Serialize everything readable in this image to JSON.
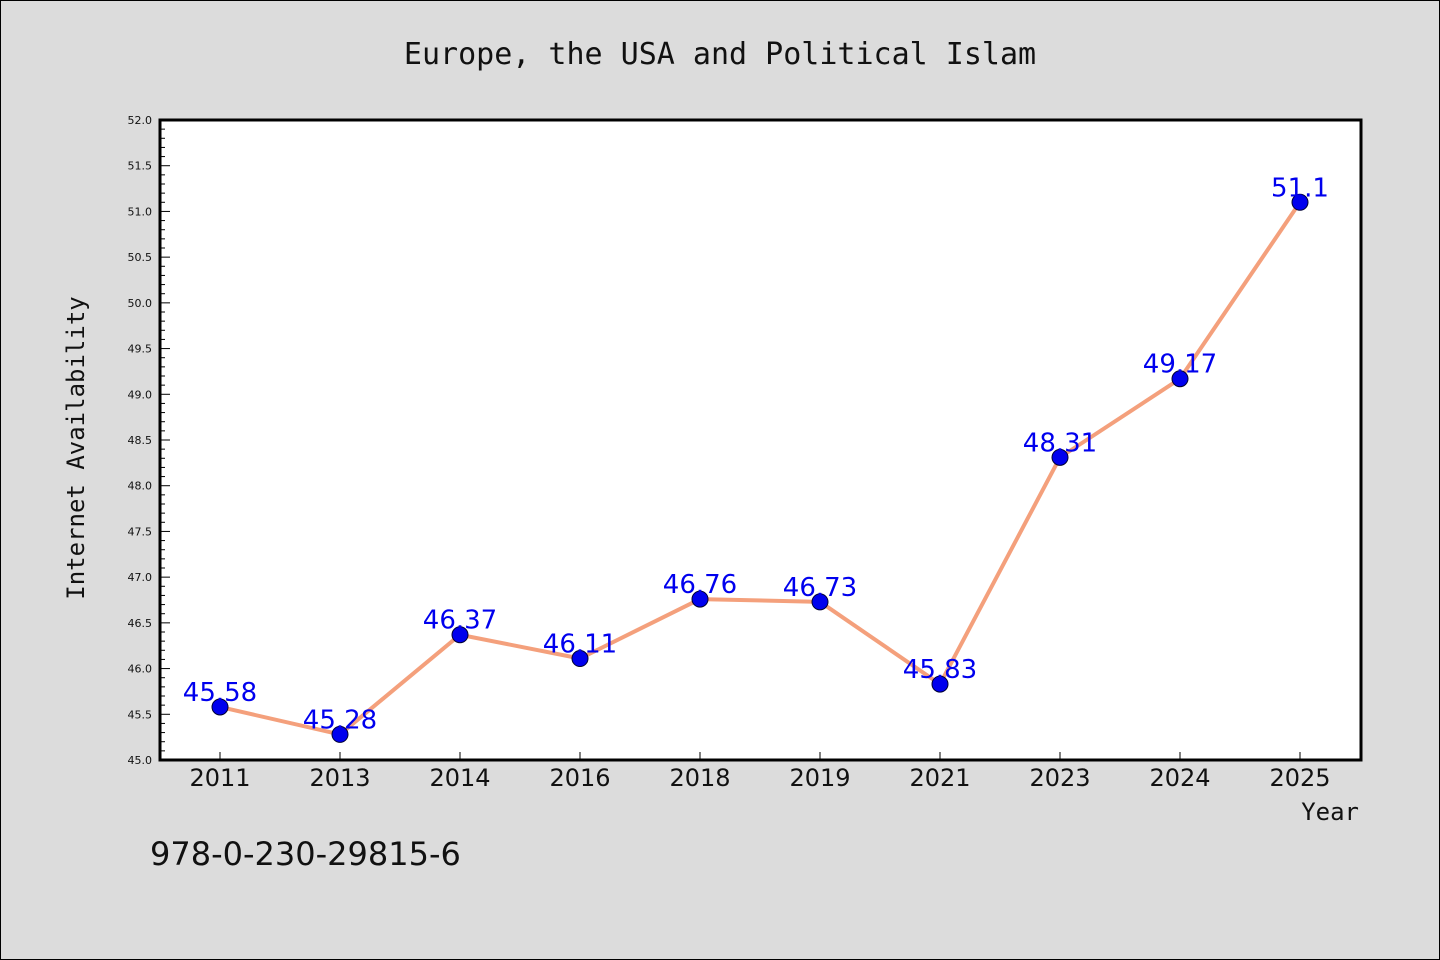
{
  "chart_data": {
    "type": "line",
    "title": "Europe, the USA and Political Islam",
    "xlabel": "Year",
    "ylabel": "Internet Availability",
    "categories": [
      "2011",
      "2013",
      "2014",
      "2016",
      "2018",
      "2019",
      "2021",
      "2023",
      "2024",
      "2025"
    ],
    "series": [
      {
        "values": [
          45.58,
          45.28,
          46.37,
          46.11,
          46.76,
          46.73,
          45.83,
          48.31,
          49.17,
          51.1
        ],
        "data_labels": [
          "45.58",
          "45.28",
          "46.37",
          "46.11",
          "46.76",
          "46.73",
          "45.83",
          "48.31",
          "49.17",
          "51.1"
        ]
      }
    ],
    "ylim": [
      45.0,
      52.0
    ],
    "y_ticks": [
      "45.0",
      "45.5",
      "46.0",
      "46.5",
      "47.0",
      "47.5",
      "48.0",
      "48.5",
      "49.0",
      "49.5",
      "50.0",
      "50.5",
      "51.0",
      "51.5",
      "52.0"
    ],
    "grid": false,
    "footer_text": "978-0-230-29815-6",
    "colors": {
      "background": "#dcdcdc",
      "plot_background": "#ffffff",
      "line": "#f4a07c",
      "marker": "#0000ee",
      "data_label": "#0000ee",
      "axis": "#000000"
    }
  }
}
